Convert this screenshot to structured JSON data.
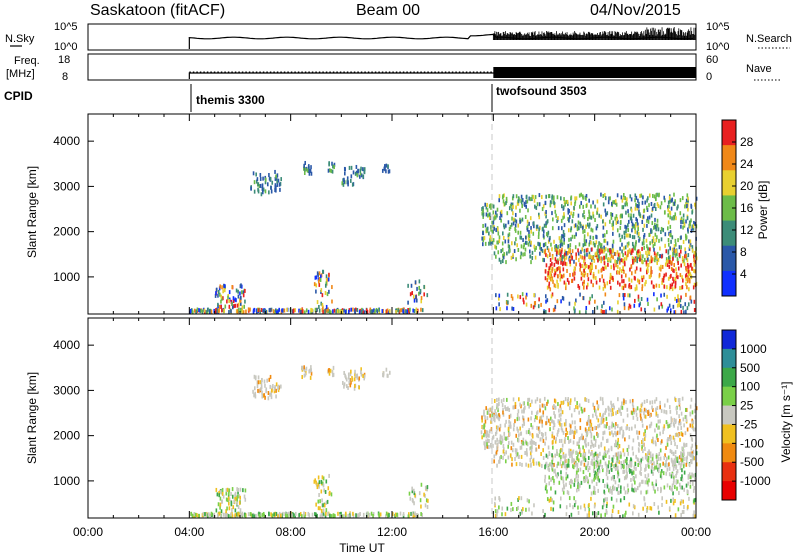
{
  "header": {
    "station": "Saskatoon (fitACF)",
    "beam": "Beam 00",
    "date": "04/Nov/2015"
  },
  "noise_panel": {
    "left_label": "N.Sky",
    "left_top_tick": "10^5",
    "left_bottom_tick": "10^0",
    "right_top_tick": "10^5",
    "right_bottom_tick": "10^0",
    "right_label": "N.Search"
  },
  "freq_panel": {
    "left_label_line1": "Freq.",
    "left_label_line2": "[MHz]",
    "left_ticks": [
      "18",
      "8"
    ],
    "right_ticks": [
      "60",
      "0"
    ],
    "right_label": "Nave"
  },
  "cpid_panel": {
    "label": "CPID",
    "segments": [
      {
        "name": "themis 3300",
        "start_hour": 4
      },
      {
        "name": "twofsound 3503",
        "start_hour": 16
      }
    ]
  },
  "chart_data": [
    {
      "type": "heatmap",
      "id": "power",
      "ylabel": "Slant Range [km]",
      "yticks": [
        "1000",
        "2000",
        "3000",
        "4000"
      ],
      "ylim": [
        180,
        4600
      ],
      "xlim_hours": [
        0,
        24
      ],
      "colorbar_label": "Power [dB]",
      "colorbar_ticks": [
        "4",
        "8",
        "12",
        "16",
        "20",
        "24",
        "28"
      ],
      "colorbar_colors": [
        "#1030ff",
        "#2a58a8",
        "#3c8c78",
        "#6cbc48",
        "#e8d030",
        "#f08818",
        "#e82020"
      ]
    },
    {
      "type": "heatmap",
      "id": "velocity",
      "ylabel": "Slant Range [km]",
      "yticks": [
        "1000",
        "2000",
        "3000",
        "4000"
      ],
      "ylim": [
        180,
        4600
      ],
      "xlim_hours": [
        0,
        24
      ],
      "colorbar_label": "Velocity [m s⁻¹]",
      "colorbar_ticks": [
        "1000",
        "500",
        "100",
        "25",
        "-25",
        "-100",
        "-500",
        "-1000"
      ],
      "colorbar_colors": [
        "#1028d8",
        "#2e8e98",
        "#3ca848",
        "#7ad048",
        "#c8c8c0",
        "#f0c020",
        "#f08a10",
        "#e83010",
        "#e80000"
      ]
    }
  ],
  "xaxis": {
    "ticks": [
      "00:00",
      "04:00",
      "08:00",
      "12:00",
      "16:00",
      "20:00",
      "00:00"
    ],
    "label": "Time UT"
  }
}
